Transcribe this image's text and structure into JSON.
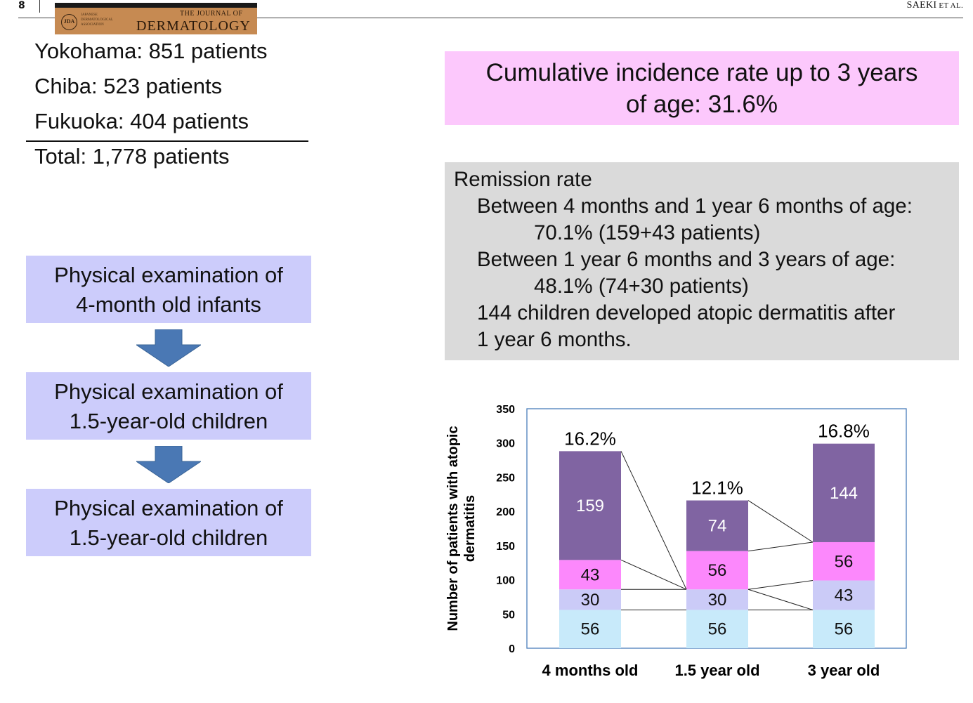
{
  "header": {
    "page_number": "8",
    "authors_main": "SAEKI",
    "authors_suffix": " ET AL.",
    "logo": {
      "seal": "JDA",
      "association": "Japanese Dermatological Association",
      "small": "The Journal of",
      "big": "DERMATOLOGY"
    }
  },
  "cohorts": {
    "items": [
      "Yokohama: 851 patients",
      "Chiba: 523 patients",
      "Fukuoka: 404 patients"
    ],
    "total": "Total: 1,778 patients"
  },
  "flow": {
    "steps": [
      [
        "Physical examination of",
        "4-month old infants"
      ],
      [
        "Physical examination of",
        "1.5-year-old children"
      ],
      [
        "Physical examination of",
        "1.5-year-old children"
      ]
    ]
  },
  "incidence": [
    "Cumulative incidence rate up to 3 years",
    "of age: 31.6%"
  ],
  "remission": {
    "title": "Remission rate",
    "line1": "Between 4 months and 1 year 6 months of age:",
    "line2": "70.1% (159+43 patients)",
    "line3": "Between 1 year 6 months and 3 years of age:",
    "line4": "48.1% (74+30 patients)",
    "line5": "144 children developed atopic dermatitis after",
    "line6": "1 year 6 months."
  },
  "colors": {
    "flow_box": "#ccccfb",
    "incidence_box": "#fcc8fc",
    "remission_box": "#dadada",
    "arrow": "#4a78b4"
  },
  "chart_data": {
    "type": "bar",
    "stacked": true,
    "categories": [
      "4 months old",
      "1.5 year old",
      "3 year old"
    ],
    "ylabel": "Number of patients with atopic dermatitis",
    "ylim": [
      0,
      350
    ],
    "yticks": [
      0,
      50,
      100,
      150,
      200,
      250,
      300,
      350
    ],
    "series": [
      {
        "values": [
          56,
          56,
          56
        ],
        "color": "#c8eafa",
        "label_color": "#111111"
      },
      {
        "values": [
          30,
          30,
          43
        ],
        "color": "#cbcbf7",
        "label_color": "#111111"
      },
      {
        "values": [
          43,
          56,
          56
        ],
        "color": "#fc88fc",
        "label_color": "#111111"
      },
      {
        "values": [
          159,
          74,
          144
        ],
        "color": "#8064a2",
        "label_color": "#ffffff"
      }
    ],
    "bar_annotations": [
      "16.2%",
      "12.1%",
      "16.8%"
    ],
    "grid": false,
    "frame_color": "#4a7ebb"
  }
}
